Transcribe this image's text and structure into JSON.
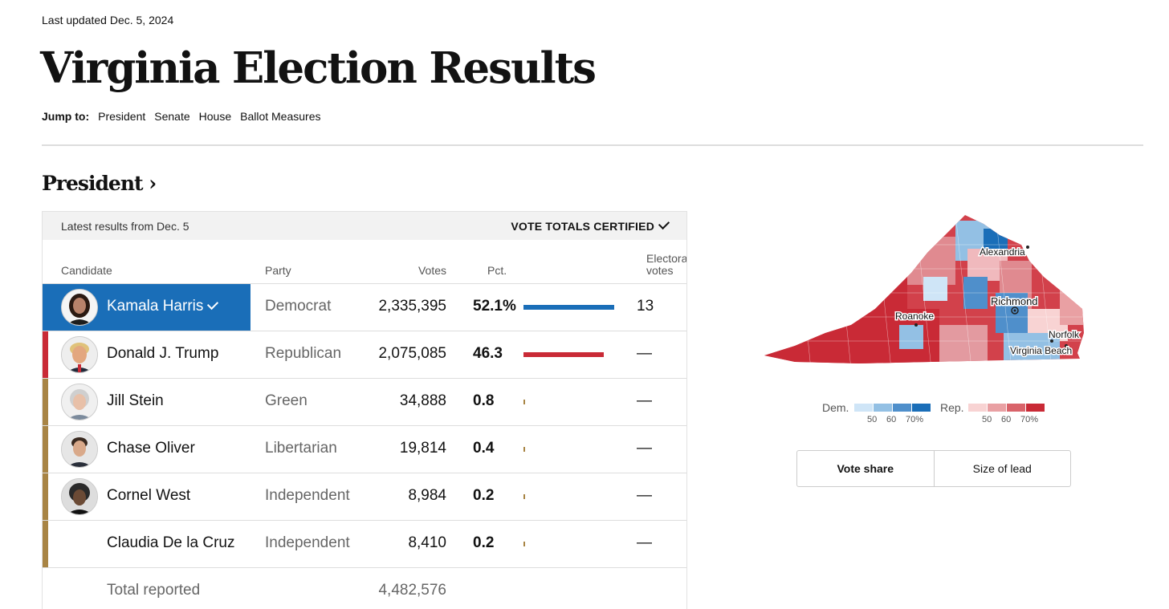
{
  "header": {
    "updated": "Last updated Dec. 5, 2024",
    "title": "Virginia Election Results",
    "jump_label": "Jump to:",
    "jump_links": [
      "President",
      "Senate",
      "House",
      "Ballot Measures"
    ]
  },
  "section_title": "President ›",
  "table": {
    "latest": "Latest results from Dec. 5",
    "certified": "VOTE TOTALS CERTIFIED",
    "columns": {
      "candidate": "Candidate",
      "party": "Party",
      "votes": "Votes",
      "pct": "Pct.",
      "ev_line1": "Electoral",
      "ev_line2": "votes"
    },
    "rows": [
      {
        "name": "Kamala Harris",
        "party": "Democrat",
        "votes": "2,335,395",
        "pct": "52.1%",
        "pct_value": 52.1,
        "ev": "13",
        "color": "#1a6eb8",
        "winner": true
      },
      {
        "name": "Donald J. Trump",
        "party": "Republican",
        "votes": "2,075,085",
        "pct": "46.3",
        "pct_value": 46.3,
        "ev": "—",
        "color": "#c92a36",
        "winner": false
      },
      {
        "name": "Jill Stein",
        "party": "Green",
        "votes": "34,888",
        "pct": "0.8",
        "pct_value": 0.8,
        "ev": "—",
        "color": "#a88444",
        "winner": false
      },
      {
        "name": "Chase Oliver",
        "party": "Libertarian",
        "votes": "19,814",
        "pct": "0.4",
        "pct_value": 0.4,
        "ev": "—",
        "color": "#a88444",
        "winner": false
      },
      {
        "name": "Cornel West",
        "party": "Independent",
        "votes": "8,984",
        "pct": "0.2",
        "pct_value": 0.2,
        "ev": "—",
        "color": "#a88444",
        "winner": false
      },
      {
        "name": "Claudia De la Cruz",
        "party": "Independent",
        "votes": "8,410",
        "pct": "0.2",
        "pct_value": 0.2,
        "ev": "—",
        "color": "#a88444",
        "winner": false
      }
    ],
    "total_label": "Total reported",
    "total_votes": "4,482,576"
  },
  "map": {
    "cities": [
      "Alexandria",
      "Richmond",
      "Roanoke",
      "Norfolk",
      "Virginia Beach"
    ],
    "dem_color": "#1a6eb8",
    "rep_color": "#c92a36"
  },
  "legend": {
    "dem_label": "Dem.",
    "rep_label": "Rep.",
    "ticks": [
      "50",
      "60",
      "70%"
    ],
    "dem_colors": [
      "#cfe5f7",
      "#93c0e4",
      "#4f8fcb",
      "#1a6eb8"
    ],
    "rep_colors": [
      "#f8d3d3",
      "#e9a0a3",
      "#d9636a",
      "#c92a36"
    ]
  },
  "toggle": {
    "vote_share": "Vote share",
    "size_of_lead": "Size of lead"
  }
}
